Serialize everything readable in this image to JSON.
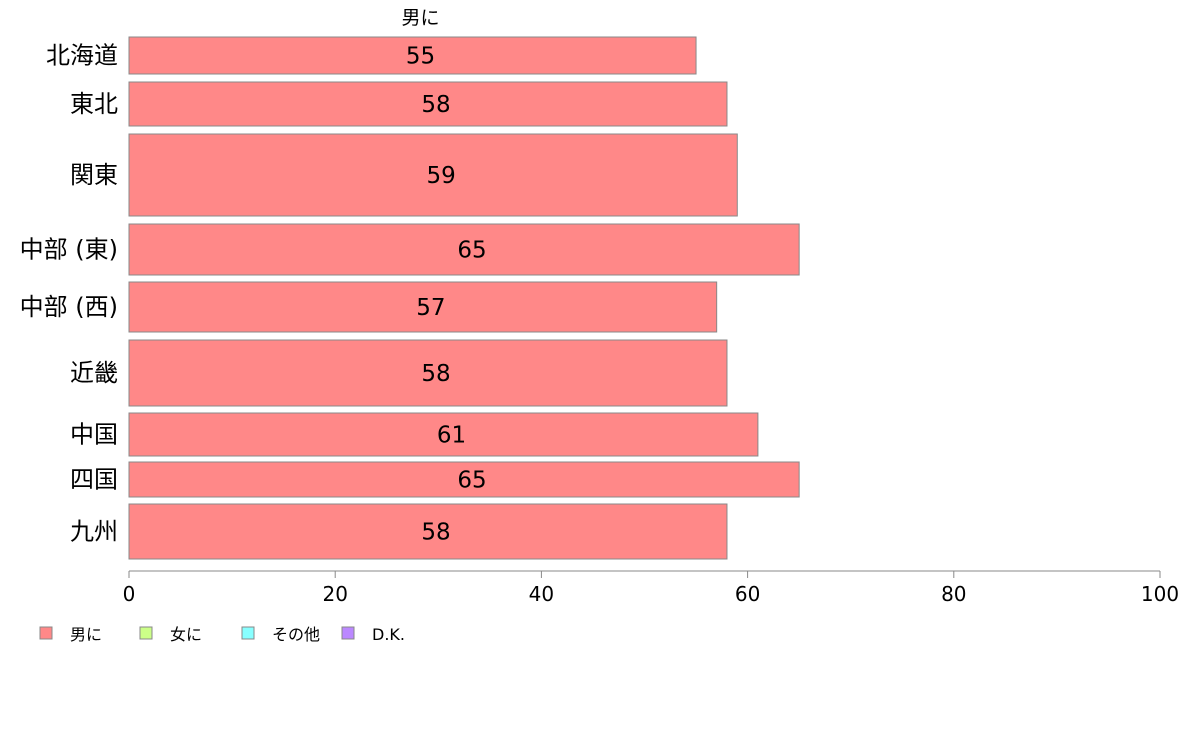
{
  "chart_data": {
    "type": "bar",
    "orientation": "horizontal",
    "title": "",
    "xlabel": "",
    "ylabel": "",
    "series_label": "男に",
    "categories": [
      "北海道",
      "東北",
      "関東",
      "中部 (東)",
      "中部 (西)",
      "近畿",
      "中国",
      "四国",
      "九州"
    ],
    "series": [
      {
        "name": "男に",
        "color": "#ff8888",
        "values": [
          55,
          58,
          59,
          65,
          57,
          58,
          61,
          65,
          58
        ]
      }
    ],
    "value_labels": [
      "55",
      "58",
      "59",
      "65",
      "57",
      "58",
      "61",
      "65",
      "58"
    ],
    "xlim": [
      0,
      100
    ],
    "x_ticks": [
      0,
      20,
      40,
      60,
      80,
      100
    ],
    "x_tick_labels": [
      "0",
      "20",
      "40",
      "60",
      "80",
      "100"
    ],
    "grid": false,
    "legend": {
      "placement": "bottom-left",
      "entries": [
        {
          "label": "男に",
          "color": "#ff8888"
        },
        {
          "label": "女に",
          "color": "#ccff88"
        },
        {
          "label": "その他",
          "color": "#88ffff"
        },
        {
          "label": "D.K.",
          "color": "#bb88ff"
        }
      ]
    }
  }
}
